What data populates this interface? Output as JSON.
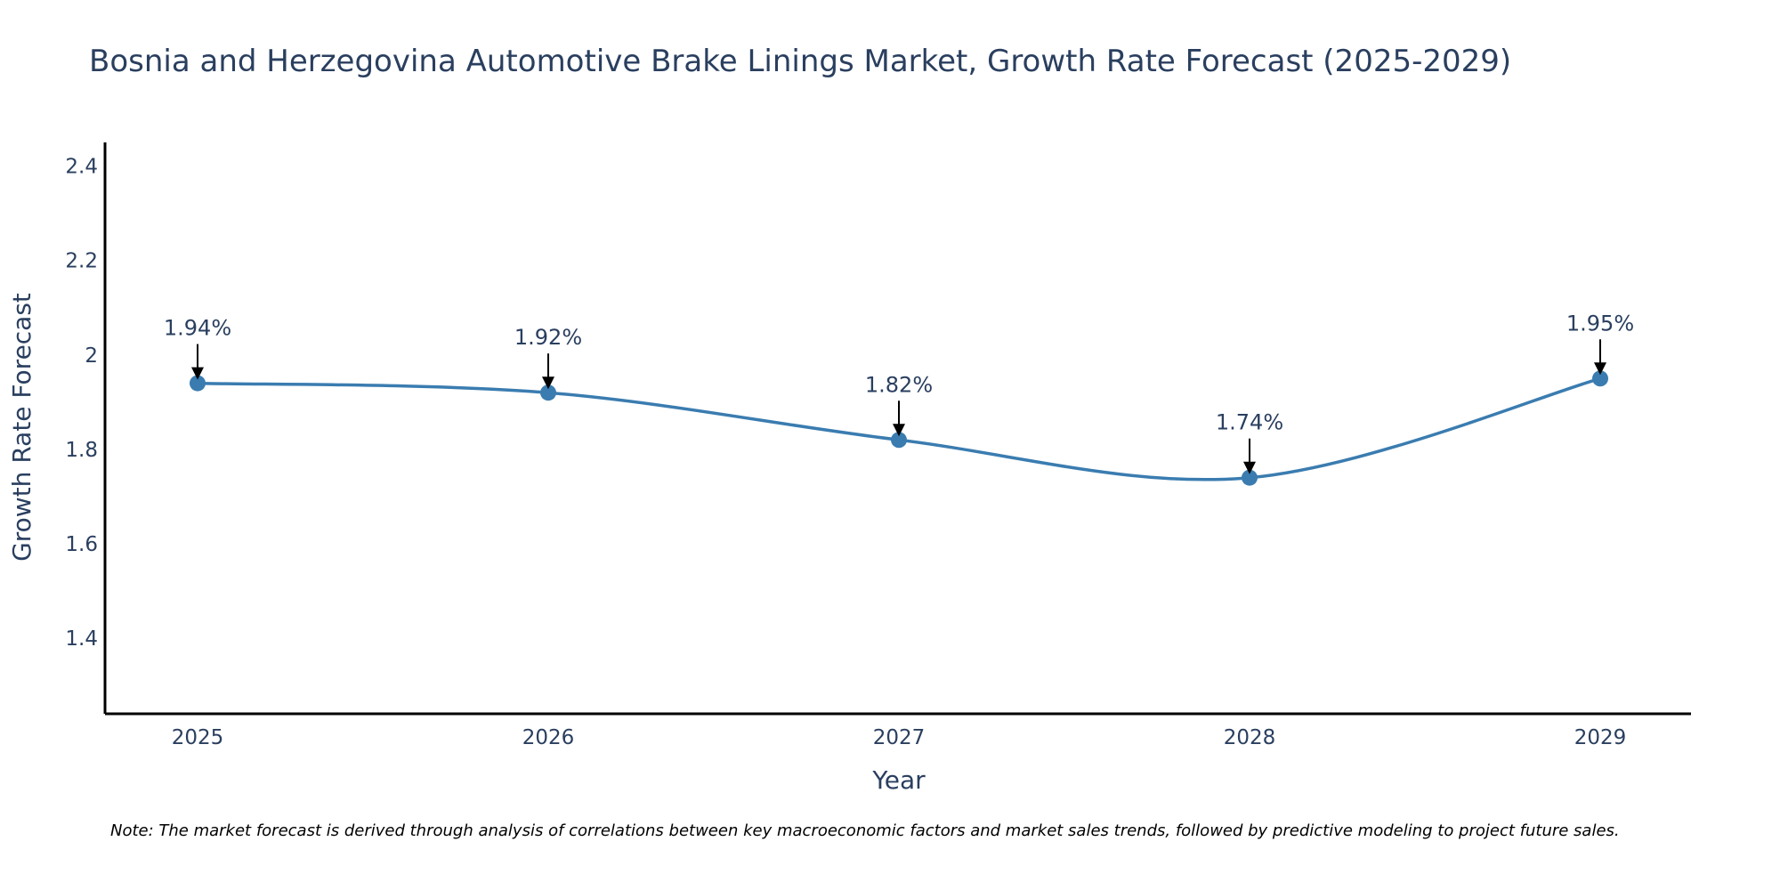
{
  "chart_data": {
    "type": "line",
    "title": "Bosnia and Herzegovina Automotive Brake Linings Market, Growth Rate Forecast (2025-2029)",
    "xlabel": "Year",
    "ylabel": "Growth Rate Forecast",
    "categories": [
      "2025",
      "2026",
      "2027",
      "2028",
      "2029"
    ],
    "values": [
      1.94,
      1.92,
      1.82,
      1.74,
      1.95
    ],
    "data_labels": [
      "1.94%",
      "1.92%",
      "1.82%",
      "1.74%",
      "1.95%"
    ],
    "yticks": [
      1.4,
      1.6,
      1.8,
      2,
      2.2,
      2.4
    ],
    "ytick_labels": [
      "1.4",
      "1.6",
      "1.8",
      "2",
      "2.2",
      "2.4"
    ],
    "ylim": [
      1.24,
      2.45
    ],
    "grid": false,
    "line_shape": "spline",
    "colors": {
      "line": "#3a7cb0",
      "marker": "#3a7cb0",
      "axis": "#000000",
      "arrow": "#000000",
      "text": "#2a3f5f"
    }
  },
  "note": "Note: The market forecast is derived through analysis of correlations between key macroeconomic factors and market sales trends, followed by predictive modeling to project future sales."
}
